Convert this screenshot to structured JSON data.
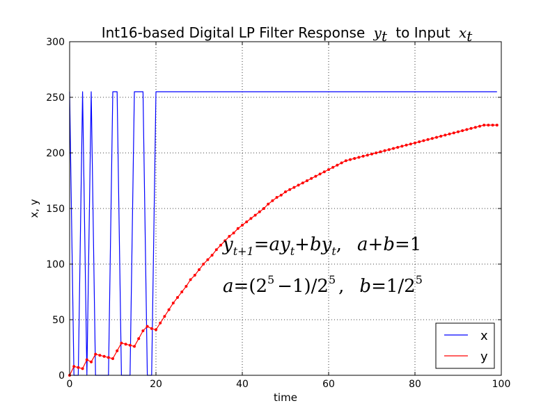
{
  "chart_data": {
    "type": "line",
    "title_text": "Int16-based Digital LP Filter Response",
    "title_y_symbol": "y",
    "title_y_sub": "t",
    "title_mid": "to Input",
    "title_x_symbol": "x",
    "title_x_sub": "t",
    "xlabel": "time",
    "ylabel": "x, y",
    "xlim": [
      0,
      100
    ],
    "ylim": [
      0,
      300
    ],
    "xticks": [
      0,
      20,
      40,
      60,
      80,
      100
    ],
    "yticks": [
      0,
      50,
      100,
      150,
      200,
      250,
      300
    ],
    "grid": true,
    "legend": {
      "placement": "lower-right",
      "entries": [
        "x",
        "y"
      ]
    },
    "series": [
      {
        "name": "x",
        "color": "#0000ff",
        "marker": "none",
        "x": [
          0,
          1,
          2,
          3,
          4,
          5,
          6,
          7,
          8,
          9,
          10,
          11,
          12,
          13,
          14,
          15,
          16,
          17,
          18,
          19,
          20,
          99
        ],
        "y": [
          255,
          0,
          0,
          255,
          0,
          255,
          0,
          0,
          0,
          0,
          255,
          255,
          0,
          0,
          0,
          255,
          255,
          255,
          0,
          0,
          255,
          255
        ]
      },
      {
        "name": "y",
        "color": "#ff0000",
        "marker": "dot",
        "x": [
          0,
          1,
          2,
          3,
          4,
          5,
          6,
          7,
          8,
          9,
          10,
          11,
          12,
          13,
          14,
          15,
          16,
          17,
          18,
          19,
          20,
          21,
          22,
          23,
          24,
          25,
          26,
          27,
          28,
          29,
          30,
          31,
          32,
          33,
          34,
          35,
          36,
          37,
          38,
          39,
          40,
          41,
          42,
          43,
          44,
          45,
          46,
          47,
          48,
          49,
          50,
          51,
          52,
          53,
          54,
          55,
          56,
          57,
          58,
          59,
          60,
          61,
          62,
          63,
          64,
          65,
          66,
          67,
          68,
          69,
          70,
          71,
          72,
          73,
          74,
          75,
          76,
          77,
          78,
          79,
          80,
          81,
          82,
          83,
          84,
          85,
          86,
          87,
          88,
          89,
          90,
          91,
          92,
          93,
          94,
          95,
          96,
          97,
          98,
          99
        ],
        "y": [
          0,
          8,
          7,
          6,
          14,
          12,
          19,
          18,
          17,
          16,
          15,
          22,
          29,
          28,
          27,
          26,
          33,
          40,
          44,
          42,
          41,
          47,
          53,
          59,
          65,
          70,
          75,
          80,
          86,
          90,
          95,
          100,
          104,
          108,
          113,
          117,
          121,
          125,
          128,
          132,
          135,
          138,
          141,
          144,
          147,
          150,
          154,
          157,
          160,
          162,
          165,
          167,
          169,
          171,
          173,
          175,
          177,
          179,
          181,
          183,
          185,
          187,
          189,
          191,
          193,
          194,
          195,
          196,
          197,
          198,
          199,
          200,
          201,
          202,
          203,
          204,
          205,
          206,
          207,
          208,
          209,
          210,
          211,
          212,
          213,
          214,
          215,
          216,
          217,
          218,
          219,
          220,
          221,
          222,
          223,
          224,
          225,
          225,
          225,
          225
        ]
      }
    ],
    "annotations": [
      {
        "id": "eq1",
        "lhs_symbol": "y",
        "lhs_sub": "t+1",
        "eq_sign": "=",
        "a1": "a",
        "y1": "y",
        "y1_sub": "t",
        "plus": "+",
        "b1": "b",
        "y2": "y",
        "y2_sub": "t",
        "comma": ",",
        "rel_a": "a",
        "rel_plus": "+",
        "rel_b": "b",
        "rel_eq": "=",
        "rel_one": "1"
      },
      {
        "id": "eq2",
        "a": "a",
        "eq_sign": "=",
        "lparen": "(2",
        "exp1": "5",
        "minus_one": "−1)/2",
        "exp2": "5",
        "comma": ",",
        "b": "b",
        "b_eq": "=",
        "b_val": "1/2",
        "exp3": "5"
      }
    ]
  }
}
